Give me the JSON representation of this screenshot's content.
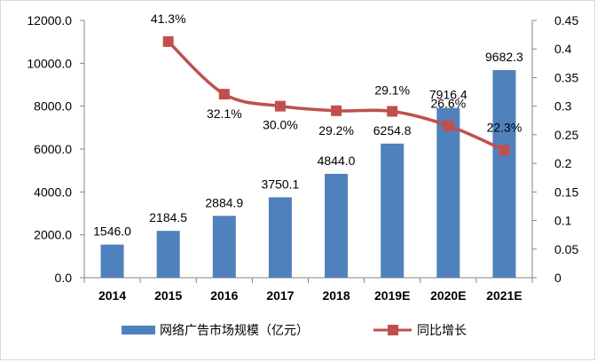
{
  "chart_data": {
    "type": "bar",
    "categories": [
      "2014",
      "2015",
      "2016",
      "2017",
      "2018",
      "2019E",
      "2020E",
      "2021E"
    ],
    "series": [
      {
        "name": "网络广告市场规模（亿元）",
        "type": "bar",
        "axis": "left",
        "color": "#4f81bd",
        "values": [
          1546.0,
          2184.5,
          2884.9,
          3750.1,
          4844.0,
          6254.8,
          7916.4,
          9682.3
        ],
        "labels": [
          "1546.0",
          "2184.5",
          "2884.9",
          "3750.1",
          "4844.0",
          "6254.8",
          "7916.4",
          "9682.3"
        ]
      },
      {
        "name": "同比增长",
        "type": "line",
        "axis": "right",
        "color": "#c0504d",
        "values": [
          null,
          0.413,
          0.321,
          0.3,
          0.292,
          0.291,
          0.266,
          0.223
        ],
        "labels": [
          "",
          "41.3%",
          "32.1%",
          "30.0%",
          "29.2%",
          "29.1%",
          "26.6%",
          "22.3%"
        ]
      }
    ],
    "y_left": {
      "range": [
        0,
        12000
      ],
      "ticks": [
        0,
        2000,
        4000,
        6000,
        8000,
        10000,
        12000
      ],
      "tick_labels": [
        "0.0",
        "2000.0",
        "4000.0",
        "6000.0",
        "8000.0",
        "10000.0",
        "12000.0"
      ]
    },
    "y_right": {
      "range": [
        0,
        0.45
      ],
      "ticks": [
        0,
        0.05,
        0.1,
        0.15,
        0.2,
        0.25,
        0.3,
        0.35,
        0.4,
        0.45
      ],
      "tick_labels": [
        "0",
        "0.05",
        "0.1",
        "0.15",
        "0.2",
        "0.25",
        "0.3",
        "0.35",
        "0.4",
        "0.45"
      ]
    },
    "grid": false,
    "legend": "bottom"
  }
}
